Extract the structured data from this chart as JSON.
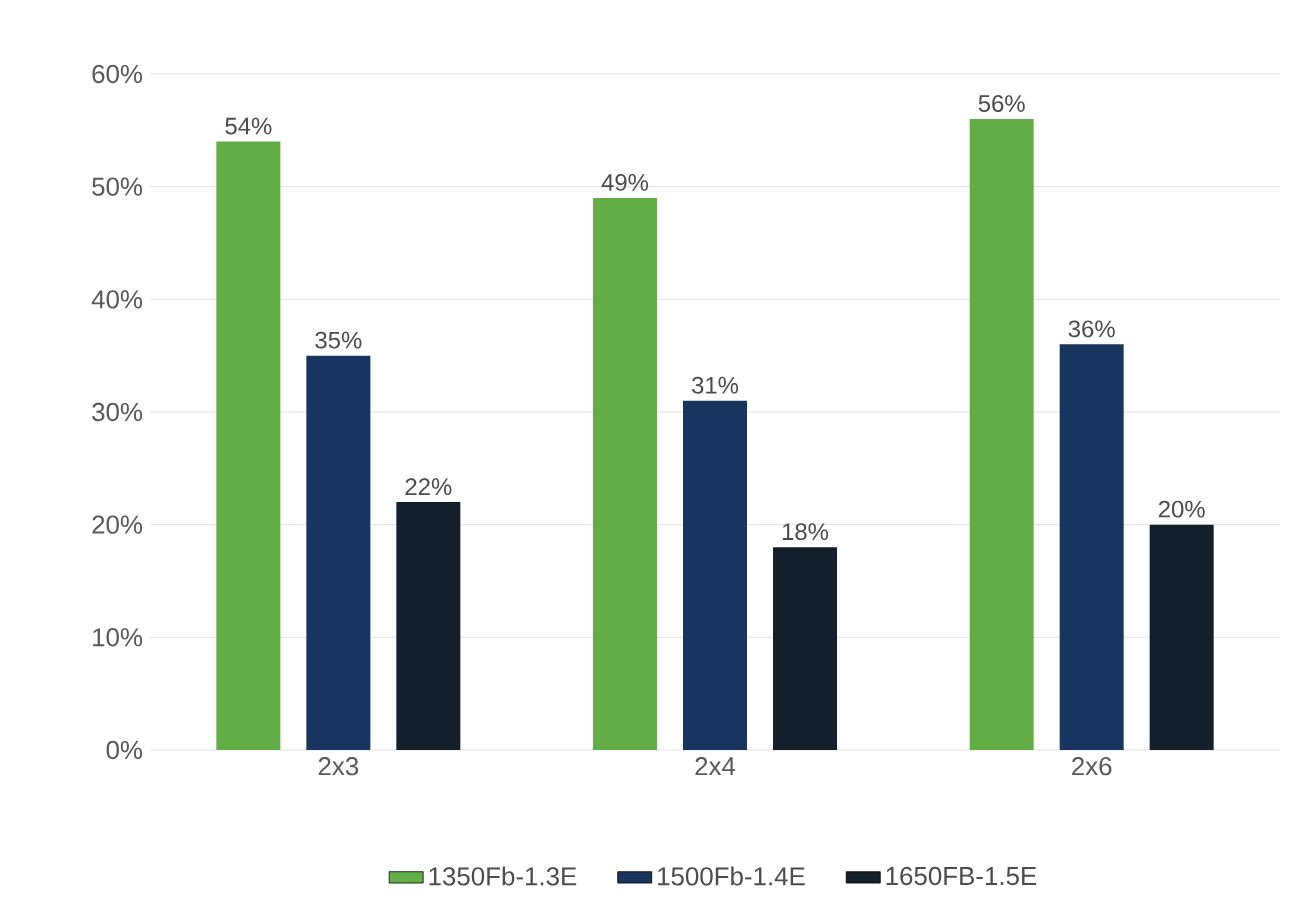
{
  "chart_data": {
    "type": "bar",
    "categories": [
      "2x3",
      "2x4",
      "2x6"
    ],
    "series": [
      {
        "name": "1350Fb-1.3E",
        "color": "#62ad46",
        "values": [
          54,
          49,
          56
        ],
        "value_labels": [
          "54%",
          "49%",
          "56%"
        ]
      },
      {
        "name": "1500Fb-1.4E",
        "color": "#17355f",
        "values": [
          35,
          31,
          36
        ],
        "value_labels": [
          "35%",
          "31%",
          "36%"
        ]
      },
      {
        "name": "1650FB-1.5E",
        "color": "#131f2b",
        "values": [
          22,
          18,
          20
        ],
        "value_labels": [
          "22%",
          "18%",
          "20%"
        ]
      }
    ],
    "ylim": [
      0,
      60
    ],
    "yticks": [
      {
        "value": 0,
        "label": "0%"
      },
      {
        "value": 10,
        "label": "10%"
      },
      {
        "value": 20,
        "label": "20%"
      },
      {
        "value": 30,
        "label": "30%"
      },
      {
        "value": 40,
        "label": "40%"
      },
      {
        "value": 50,
        "label": "50%"
      },
      {
        "value": 60,
        "label": "60%"
      }
    ],
    "grid": "y",
    "legend": "bottom"
  }
}
